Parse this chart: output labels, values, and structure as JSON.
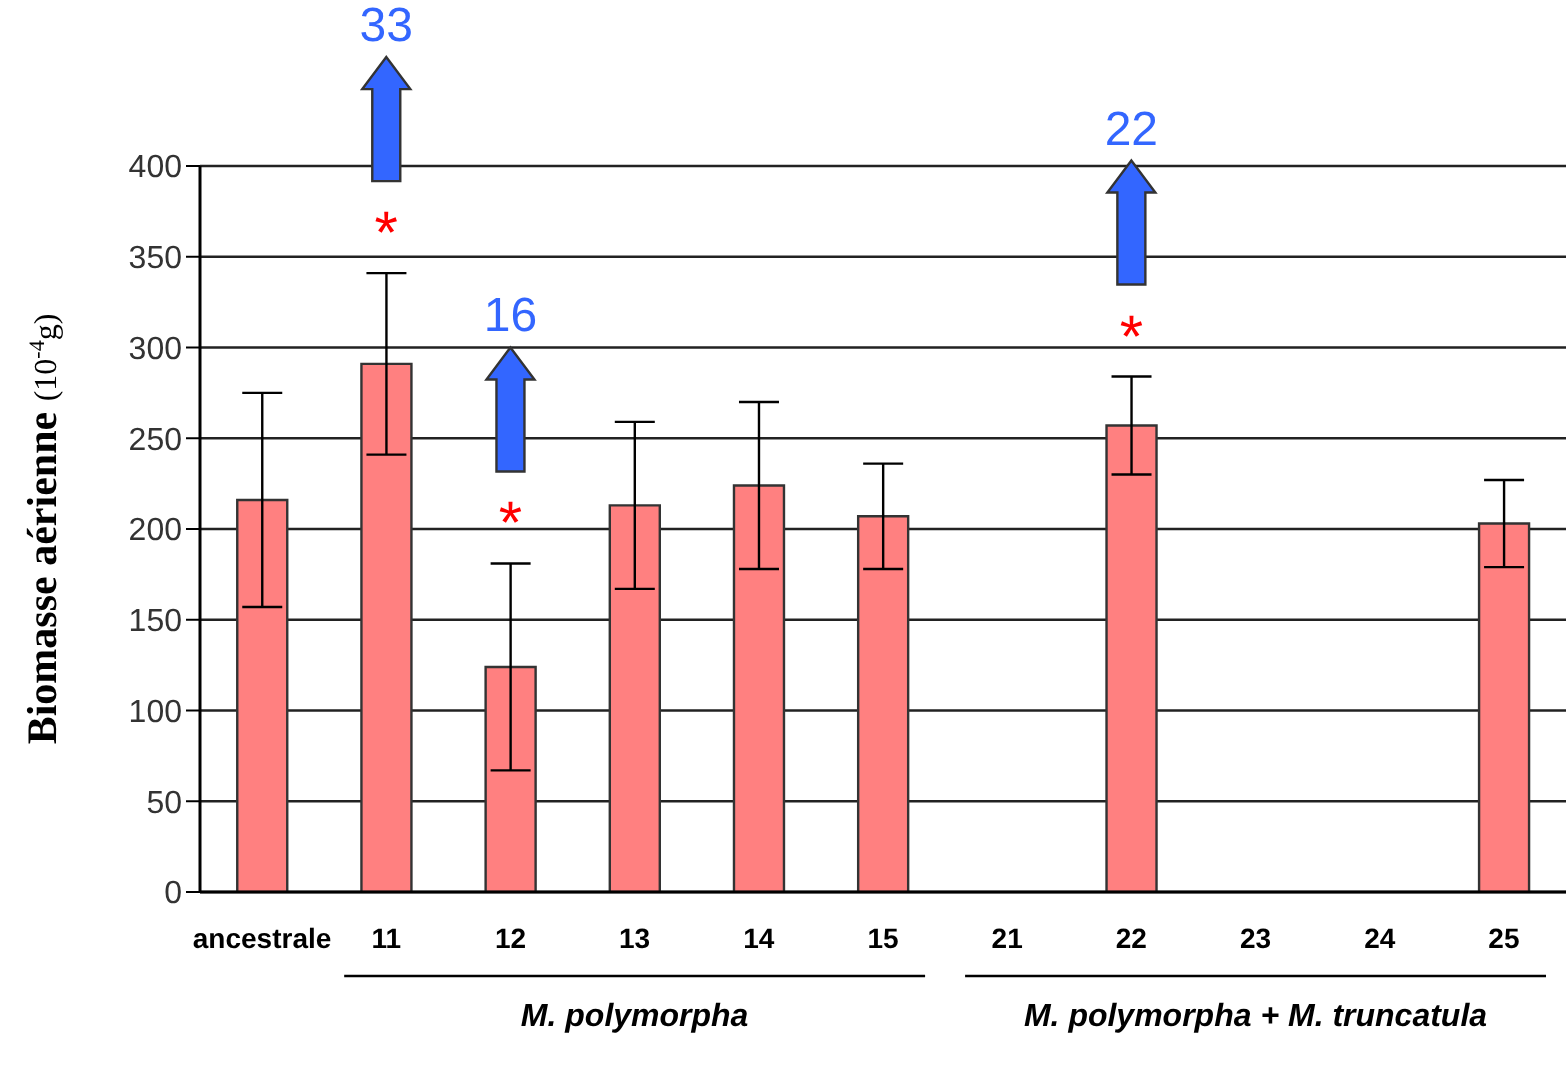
{
  "chart_data": {
    "type": "bar",
    "ylabel": "Biomasse aérienne (10$^{-4}$g)",
    "categories": [
      "ancestrale",
      "11",
      "12",
      "13",
      "14",
      "15",
      "21",
      "22",
      "23",
      "24",
      "25"
    ],
    "values": [
      216,
      291,
      124,
      213,
      224,
      207,
      null,
      257,
      null,
      null,
      203
    ],
    "errors": [
      59,
      50,
      57,
      46,
      46,
      29,
      null,
      27,
      null,
      null,
      24
    ],
    "color": "#ff8080",
    "ylim": [
      0,
      400
    ],
    "yticks": [
      0,
      50,
      100,
      150,
      200,
      250,
      300,
      350,
      400
    ],
    "grid": "y",
    "annotations": [
      "*",
      "33",
      "*",
      "16",
      "*",
      "22",
      "M. polymorpha",
      "M. polymorpha + M. truncatula"
    ]
  }
}
